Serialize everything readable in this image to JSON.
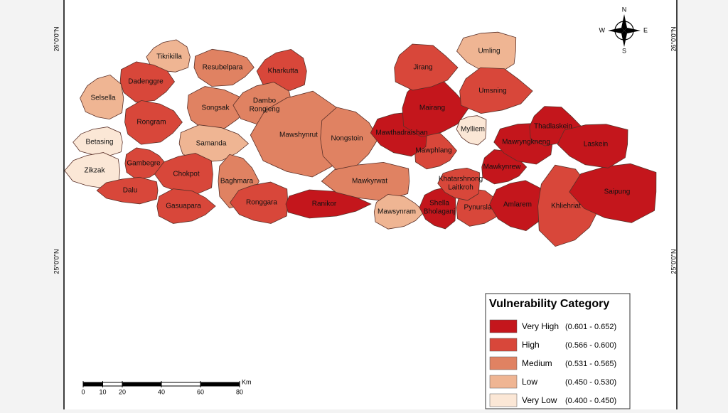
{
  "map": {
    "lat_labels": [
      "26°0'0\"N",
      "25°0'0\"N"
    ],
    "compass": {
      "n": "N",
      "s": "S",
      "e": "E",
      "w": "W"
    },
    "districts": [
      {
        "lines": [
          "Tikrikilla"
        ],
        "category": 3
      },
      {
        "lines": [
          "Resubelpara"
        ],
        "category": 2
      },
      {
        "lines": [
          "Kharkutta"
        ],
        "category": 1
      },
      {
        "lines": [
          "Dadenggre"
        ],
        "category": 1
      },
      {
        "lines": [
          "Selsella"
        ],
        "category": 3
      },
      {
        "lines": [
          "Songsak"
        ],
        "category": 2
      },
      {
        "lines": [
          "Dambo",
          "Rongjeng"
        ],
        "category": 2
      },
      {
        "lines": [
          "Rongram"
        ],
        "category": 1
      },
      {
        "lines": [
          "Betasing"
        ],
        "category": 4
      },
      {
        "lines": [
          "Samanda"
        ],
        "category": 3
      },
      {
        "lines": [
          "Mawshynrut"
        ],
        "category": 2
      },
      {
        "lines": [
          "Nongstoin"
        ],
        "category": 2
      },
      {
        "lines": [
          "Zikzak"
        ],
        "category": 4
      },
      {
        "lines": [
          "Gambegre"
        ],
        "category": 1
      },
      {
        "lines": [
          "Chokpot"
        ],
        "category": 1
      },
      {
        "lines": [
          "Baghmara"
        ],
        "category": 2
      },
      {
        "lines": [
          "Dalu"
        ],
        "category": 1
      },
      {
        "lines": [
          "Gasuapara"
        ],
        "category": 1
      },
      {
        "lines": [
          "Ronggara"
        ],
        "category": 1
      },
      {
        "lines": [
          "Ranikor"
        ],
        "category": 0
      },
      {
        "lines": [
          "Mawkyrwat"
        ],
        "category": 2
      },
      {
        "lines": [
          "Mawsynram"
        ],
        "category": 3
      },
      {
        "lines": [
          "Shella",
          "Bholaganj"
        ],
        "category": 0
      },
      {
        "lines": [
          "Pynursla"
        ],
        "category": 1
      },
      {
        "lines": [
          "Amlarem"
        ],
        "category": 0
      },
      {
        "lines": [
          "Khliehriat"
        ],
        "category": 1
      },
      {
        "lines": [
          "Saipung"
        ],
        "category": 0
      },
      {
        "lines": [
          "Mawkynrew"
        ],
        "category": 0
      },
      {
        "lines": [
          "Khatarshnong",
          "Laitkroh"
        ],
        "category": 1
      },
      {
        "lines": [
          "Mawphlang"
        ],
        "category": 1
      },
      {
        "lines": [
          "Mawthadraishan"
        ],
        "category": 0
      },
      {
        "lines": [
          "Mairang"
        ],
        "category": 0
      },
      {
        "lines": [
          "Mylliem"
        ],
        "category": 4
      },
      {
        "lines": [
          "Jirang"
        ],
        "category": 1
      },
      {
        "lines": [
          "Umling"
        ],
        "category": 3
      },
      {
        "lines": [
          "Umsning"
        ],
        "category": 1
      },
      {
        "lines": [
          "Mawryngkneng"
        ],
        "category": 0
      },
      {
        "lines": [
          "Thadlaskein"
        ],
        "category": 0
      },
      {
        "lines": [
          "Laskein"
        ],
        "category": 0
      }
    ],
    "legend": {
      "title": "Vulnerability Category",
      "items": [
        {
          "label": "Very High",
          "range": "(0.601 - 0.652)",
          "color": "#c4161c"
        },
        {
          "label": "High",
          "range": "(0.566 - 0.600)",
          "color": "#d8473a"
        },
        {
          "label": "Medium",
          "range": "(0.531 - 0.565)",
          "color": "#e08262"
        },
        {
          "label": "Low",
          "range": "(0.450 - 0.530)",
          "color": "#efb593"
        },
        {
          "label": "Very Low",
          "range": "(0.400 - 0.450)",
          "color": "#fbe7d6"
        }
      ]
    },
    "scale_bar": {
      "unit": "Km",
      "ticks": [
        0,
        10,
        20,
        40,
        60,
        80
      ]
    }
  }
}
